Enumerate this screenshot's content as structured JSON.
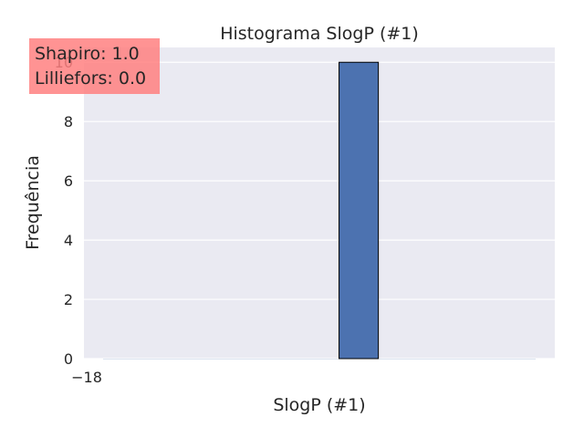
{
  "chart_data": {
    "type": "bar",
    "title": "Histograma SlogP (#1)",
    "xlabel": "SlogP (#1)",
    "ylabel": "Frequência",
    "ylim": [
      0,
      10.5
    ],
    "yticks": [
      0,
      2,
      4,
      6,
      8,
      10
    ],
    "xtick_labels": [
      "−18"
    ],
    "bins": [
      {
        "value": 0
      },
      {
        "value": 0
      },
      {
        "value": 0
      },
      {
        "value": 0
      },
      {
        "value": 0
      },
      {
        "value": 0
      },
      {
        "value": 10
      },
      {
        "value": 0
      },
      {
        "value": 0
      },
      {
        "value": 0
      },
      {
        "value": 0
      }
    ],
    "annotation": {
      "lines": [
        "Shapiro: 1.0",
        "Lilliefors: 0.0"
      ],
      "box_color": "#ff8080"
    },
    "colors": {
      "background": "#eaeaf2",
      "bar": "#4c72b0",
      "grid": "#ffffff"
    },
    "grid": true
  }
}
